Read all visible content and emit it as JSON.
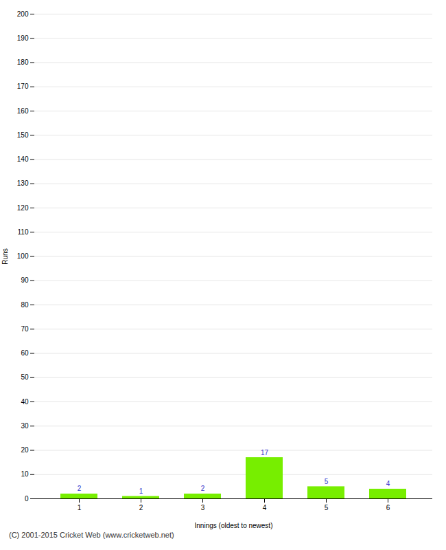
{
  "chart_data": {
    "type": "bar",
    "categories": [
      "1",
      "2",
      "3",
      "4",
      "5",
      "6"
    ],
    "values": [
      2,
      1,
      2,
      17,
      5,
      4
    ],
    "color": "#77ee00",
    "xlabel": "Innings (oldest to newest)",
    "ylabel": "Runs",
    "ylim": [
      0,
      200
    ],
    "yticks": [
      0,
      10,
      20,
      30,
      40,
      50,
      60,
      70,
      80,
      90,
      100,
      110,
      120,
      130,
      140,
      150,
      160,
      170,
      180,
      190,
      200
    ],
    "grid": true,
    "data_labels": true,
    "annotations": [
      "(C) 2001-2015 Cricket Web (www.cricketweb.net)"
    ]
  }
}
